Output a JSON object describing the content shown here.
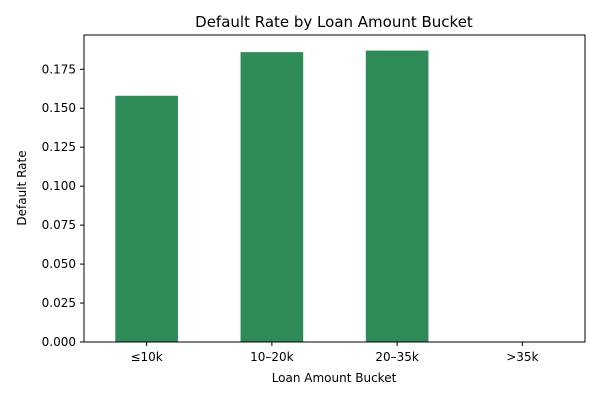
{
  "chart_data": {
    "type": "bar",
    "title": "Default Rate by Loan Amount Bucket",
    "xlabel": "Loan Amount Bucket",
    "ylabel": "Default Rate",
    "categories": [
      "≤10k",
      "10–20k",
      "20–35k",
      ">35k"
    ],
    "values": [
      0.158,
      0.186,
      0.187,
      0
    ],
    "ylim": [
      0,
      0.197
    ],
    "yticks": [
      0.0,
      0.025,
      0.05,
      0.075,
      0.1,
      0.125,
      0.15,
      0.175
    ],
    "ytick_labels": [
      "0.000",
      "0.025",
      "0.050",
      "0.075",
      "0.100",
      "0.125",
      "0.150",
      "0.175"
    ],
    "grid": false,
    "legend": "none",
    "bar_color": "#2e8b57"
  }
}
